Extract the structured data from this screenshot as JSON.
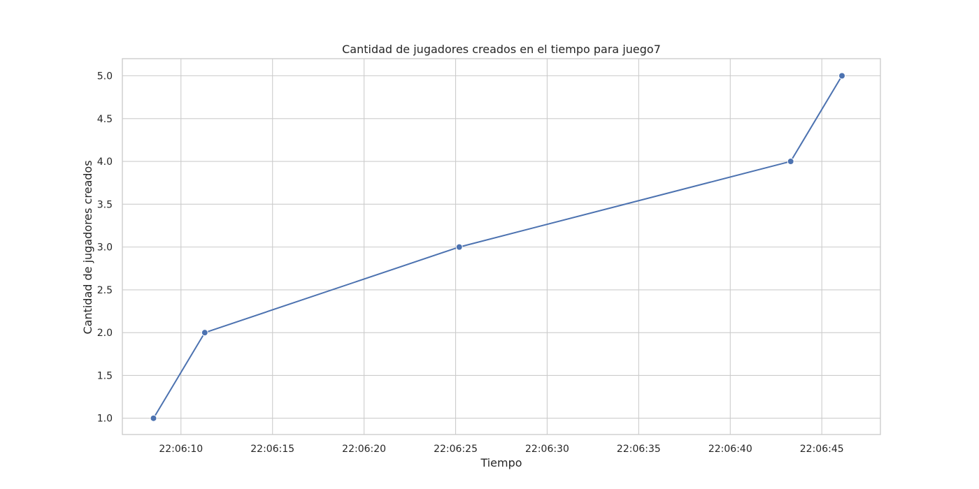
{
  "chart_data": {
    "type": "line",
    "title": "Cantidad de jugadores creados en el tiempo para juego7",
    "xlabel": "Tiempo",
    "ylabel": "Cantidad de jugadores creados",
    "x_ticks": [
      "22:06:10",
      "22:06:15",
      "22:06:20",
      "22:06:25",
      "22:06:30",
      "22:06:35",
      "22:06:40",
      "22:06:45"
    ],
    "y_ticks": [
      "1.0",
      "1.5",
      "2.0",
      "2.5",
      "3.0",
      "3.5",
      "4.0",
      "4.5",
      "5.0"
    ],
    "xlim": [
      "22:06:06.8",
      "22:06:48.2"
    ],
    "ylim": [
      0.81,
      5.2
    ],
    "grid": true,
    "series": [
      {
        "x": [
          "22:06:08.5",
          "22:06:11.3",
          "22:06:25.2",
          "22:06:43.3",
          "22:06:46.1"
        ],
        "y": [
          1,
          2,
          3,
          4,
          5
        ],
        "color": "#4c72b0",
        "marker": "circle"
      }
    ]
  }
}
